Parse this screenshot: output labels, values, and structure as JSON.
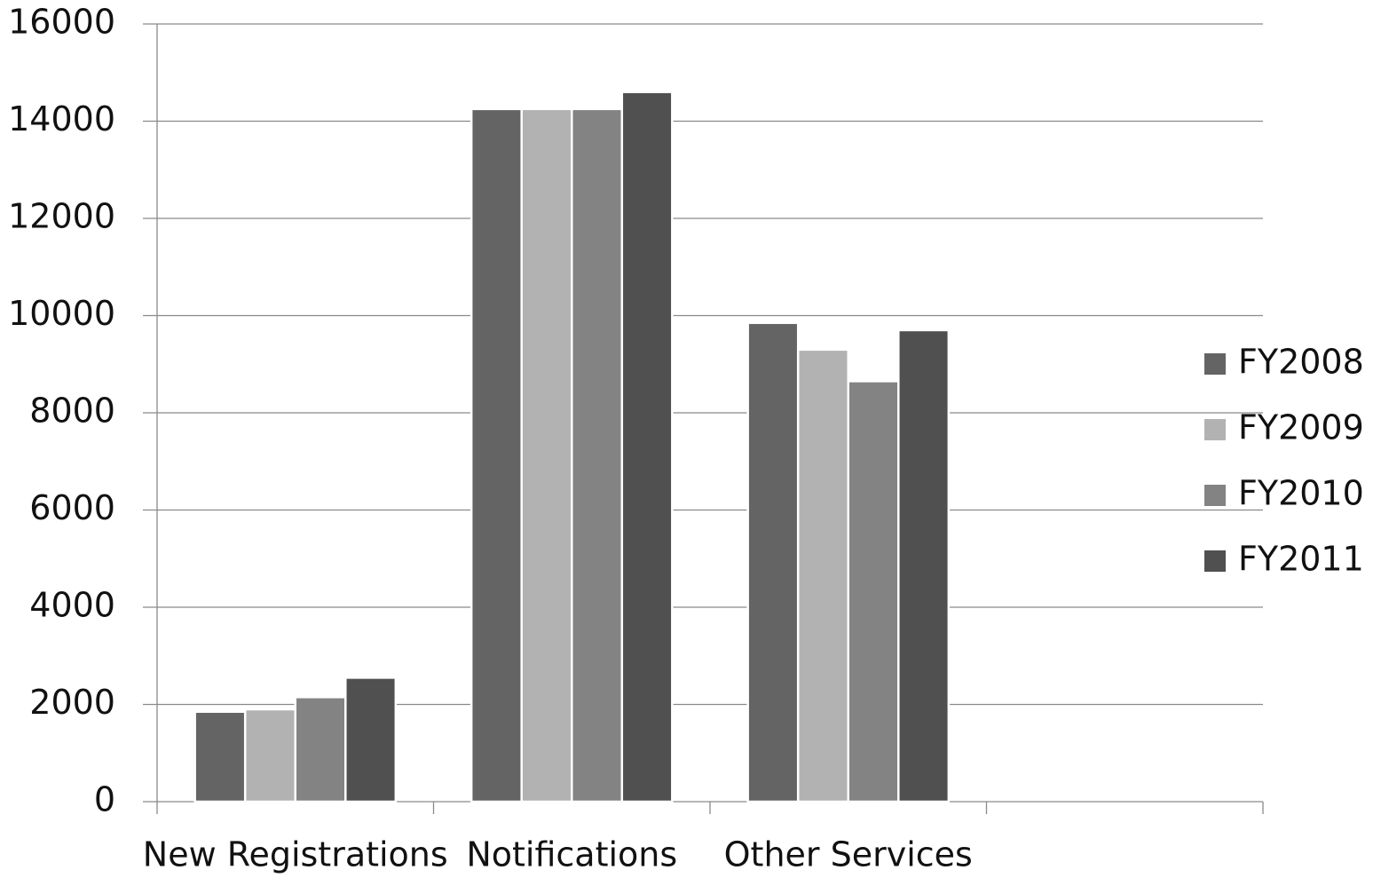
{
  "chart_data": {
    "type": "bar",
    "categories": [
      "New Registrations",
      "Notifications",
      "Other Services",
      null
    ],
    "series": [
      {
        "name": "FY2008",
        "color": "#646464",
        "values": [
          1850,
          14250,
          9850,
          null
        ]
      },
      {
        "name": "FY2009",
        "color": "#b2b2b2",
        "values": [
          1900,
          14250,
          9300,
          null
        ]
      },
      {
        "name": "FY2010",
        "color": "#838383",
        "values": [
          2150,
          14250,
          8650,
          null
        ]
      },
      {
        "name": "FY2011",
        "color": "#505050",
        "values": [
          2550,
          14600,
          9700,
          null
        ]
      }
    ],
    "ylim": [
      0,
      16000
    ],
    "yticks": [
      0,
      2000,
      4000,
      6000,
      8000,
      10000,
      12000,
      14000,
      16000
    ],
    "grid": true,
    "legend": "right"
  }
}
